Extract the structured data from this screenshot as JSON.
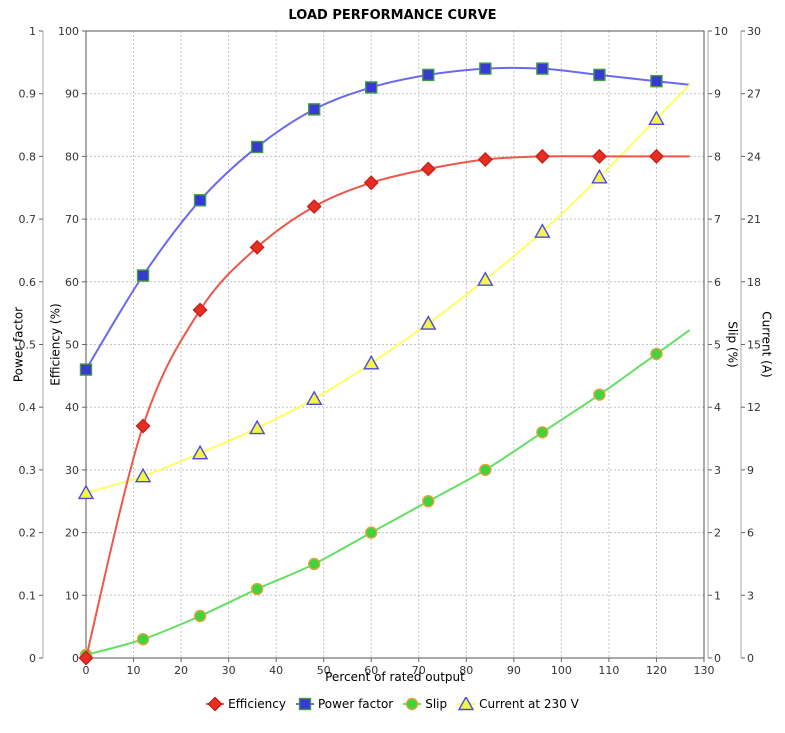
{
  "title": "LOAD PERFORMANCE CURVE",
  "chart_data": {
    "type": "line",
    "title": "LOAD PERFORMANCE CURVE",
    "xlabel": "Percent of rated output",
    "x_range": [
      0,
      130
    ],
    "x_tick_step": 10,
    "grid": true,
    "legend_position": "bottom",
    "x": [
      0,
      12,
      24,
      36,
      48,
      60,
      72,
      84,
      96,
      108,
      120
    ],
    "axes": [
      {
        "id": "pf",
        "label": "Power factor",
        "side": "left",
        "range": [
          0,
          1
        ],
        "tick_step": 0.1
      },
      {
        "id": "eff",
        "label": "Efficiency (%)",
        "side": "left",
        "range": [
          0,
          100
        ],
        "tick_step": 10
      },
      {
        "id": "slip",
        "label": "Slip (%)",
        "side": "right",
        "range": [
          0,
          10
        ],
        "tick_step": 1
      },
      {
        "id": "cur",
        "label": "Current (A)",
        "side": "right",
        "range": [
          0,
          30
        ],
        "tick_step": 3
      }
    ],
    "series": [
      {
        "name": "Efficiency",
        "axis": "eff",
        "marker": "diamond",
        "line_color": "#f25549",
        "fill": "#e62e24",
        "stroke": "#c92018",
        "values": [
          0,
          37,
          55.5,
          65.5,
          72,
          75.8,
          78,
          79.5,
          80,
          80,
          80
        ]
      },
      {
        "name": "Power factor",
        "axis": "pf",
        "marker": "square",
        "line_color": "#6a6af0",
        "fill": "#3838d2",
        "stroke": "#3f9e3f",
        "values": [
          0.46,
          0.61,
          0.73,
          0.815,
          0.875,
          0.91,
          0.93,
          0.94,
          0.94,
          0.93,
          0.92
        ]
      },
      {
        "name": "Slip",
        "axis": "slip",
        "marker": "circle",
        "line_color": "#63e063",
        "fill": "#3ed43e",
        "stroke": "#e2a43c",
        "values": [
          0.05,
          0.3,
          0.67,
          1.1,
          1.5,
          2.0,
          2.5,
          3.0,
          3.6,
          4.2,
          4.85
        ]
      },
      {
        "name": "Current at 230 V",
        "axis": "cur",
        "marker": "triangle",
        "line_color": "#ffff60",
        "fill": "#f4f449",
        "stroke": "#4b4bdc",
        "values": [
          7.9,
          8.7,
          9.8,
          11.0,
          12.4,
          14.1,
          16.0,
          18.1,
          20.4,
          23.0,
          25.8
        ]
      }
    ]
  }
}
